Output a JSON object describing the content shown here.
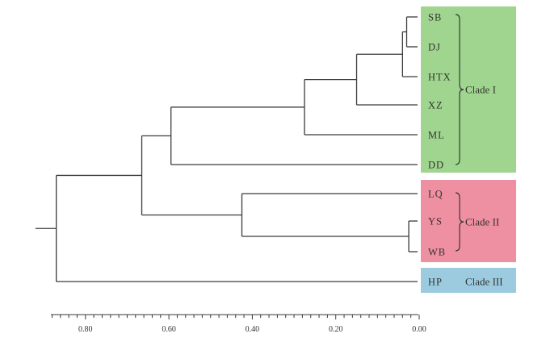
{
  "diagram": {
    "type": "dendrogram",
    "orientation": "left",
    "axis": {
      "min": 0.0,
      "max": 0.88,
      "ticks": [
        "0.80",
        "0.60",
        "0.40",
        "0.20",
        "0.00"
      ],
      "tick_values": [
        0.8,
        0.6,
        0.4,
        0.2,
        0.0
      ]
    },
    "leaves": [
      "SB",
      "DJ",
      "HTX",
      "XZ",
      "ML",
      "DD",
      "LQ",
      "YS",
      "WB",
      "HP"
    ],
    "merges": [
      {
        "id": "n1",
        "children": [
          "SB",
          "DJ"
        ],
        "height": 0.03
      },
      {
        "id": "n2",
        "children": [
          "n1",
          "HTX"
        ],
        "height": 0.04
      },
      {
        "id": "n3",
        "children": [
          "n2",
          "XZ"
        ],
        "height": 0.15
      },
      {
        "id": "n4",
        "children": [
          "n3",
          "ML"
        ],
        "height": 0.275
      },
      {
        "id": "n5",
        "children": [
          "n4",
          "DD"
        ],
        "height": 0.595
      },
      {
        "id": "n6",
        "children": [
          "YS",
          "WB"
        ],
        "height": 0.025
      },
      {
        "id": "n7",
        "children": [
          "LQ",
          "n6"
        ],
        "height": 0.425
      },
      {
        "id": "n8",
        "children": [
          "n5",
          "n7"
        ],
        "height": 0.665
      },
      {
        "id": "n9",
        "children": [
          "n8",
          "HP"
        ],
        "height": 0.87
      }
    ],
    "root_stem_height": 0.92,
    "clades": [
      {
        "label": "Clade I",
        "members": [
          "SB",
          "DJ",
          "HTX",
          "XZ",
          "ML",
          "DD"
        ],
        "color": "#9fd58e"
      },
      {
        "label": "Clade II",
        "members": [
          "LQ",
          "YS",
          "WB"
        ],
        "color": "#ef8fa2"
      },
      {
        "label": "Clade III",
        "members": [
          "HP"
        ],
        "color": "#9ccbe0"
      }
    ]
  }
}
